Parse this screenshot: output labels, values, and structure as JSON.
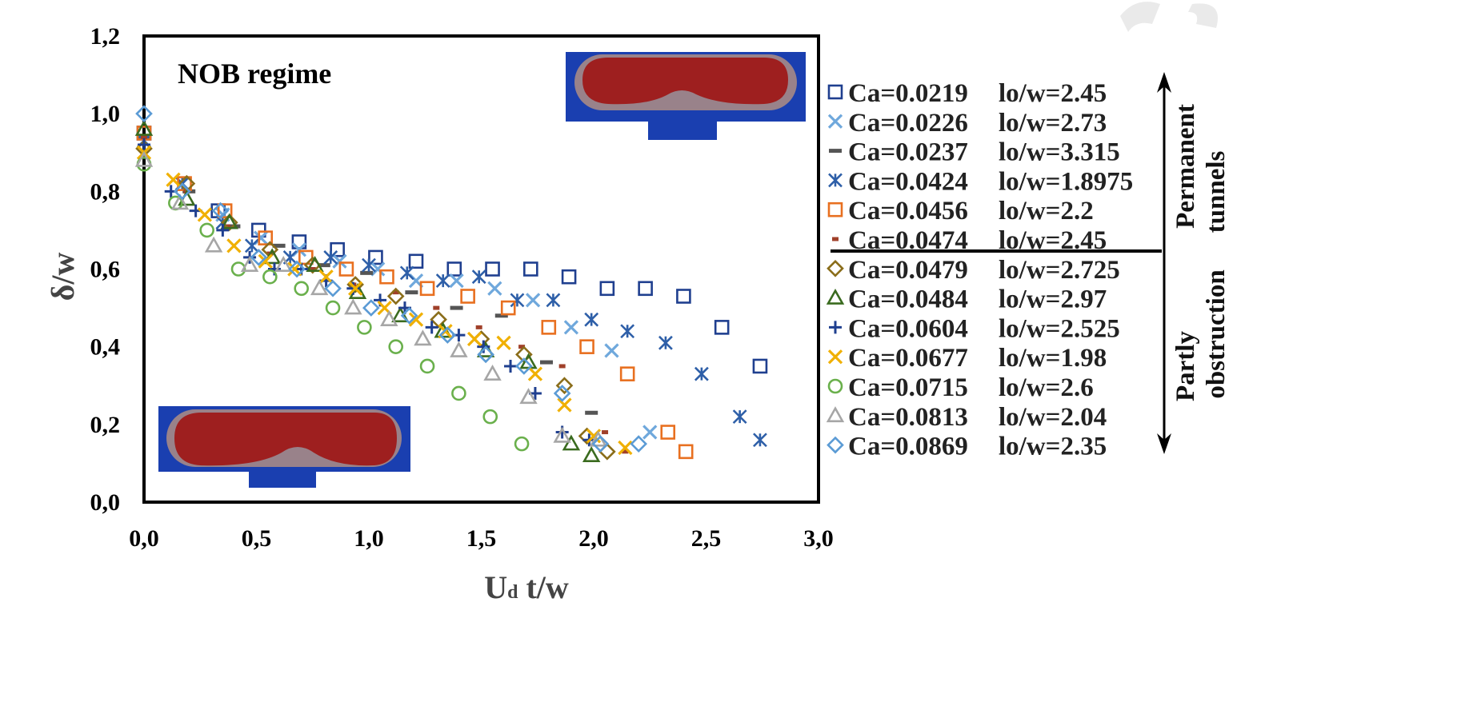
{
  "chart_data": {
    "type": "scatter",
    "title": "",
    "xlabel_main": "U",
    "xlabel_sub": "d",
    "xlabel_rest": " t/w",
    "ylabel": "δ/w",
    "xlim": [
      0,
      3
    ],
    "ylim": [
      0,
      1.2
    ],
    "xticks": [
      "0,0",
      "0,5",
      "1,0",
      "1,5",
      "2,0",
      "2,5",
      "3,0"
    ],
    "xtick_values": [
      0,
      0.5,
      1.0,
      1.5,
      2.0,
      2.5,
      3.0
    ],
    "yticks": [
      "0,0",
      "0,2",
      "0,4",
      "0,6",
      "0,8",
      "1,0",
      "1,2"
    ],
    "ytick_values": [
      0,
      0.2,
      0.4,
      0.6,
      0.8,
      1.0,
      1.2
    ],
    "grid": false,
    "legend_position": "right",
    "annotation": "NOB regime",
    "side_labels": {
      "upper": [
        "Permanent",
        "tunnels"
      ],
      "lower": [
        "Partly",
        "obstruction"
      ]
    },
    "colors": {
      "frame": "#000000",
      "channel_blue": "#1a3fb0",
      "bubble_red": "#9e1f1f"
    },
    "series": [
      {
        "name": "Ca=0.0219",
        "lo": "lo/w=2.45",
        "marker": "square-open",
        "color": "#1f3f8f",
        "x": [
          0.0,
          0.33,
          0.51,
          0.69,
          0.86,
          1.03,
          1.21,
          1.38,
          1.55,
          1.72,
          1.89,
          2.06,
          2.23,
          2.4,
          2.57,
          2.74
        ],
        "y": [
          0.95,
          0.75,
          0.7,
          0.67,
          0.65,
          0.63,
          0.62,
          0.6,
          0.6,
          0.6,
          0.58,
          0.55,
          0.55,
          0.53,
          0.45,
          0.35
        ]
      },
      {
        "name": "Ca=0.0226",
        "lo": "lo/w=2.73",
        "marker": "x",
        "color": "#6fa8dc",
        "x": [
          0.0,
          0.17,
          0.35,
          0.52,
          0.69,
          0.87,
          1.04,
          1.21,
          1.39,
          1.56,
          1.73,
          1.9,
          2.08,
          2.25
        ],
        "y": [
          0.93,
          0.82,
          0.74,
          0.68,
          0.65,
          0.62,
          0.6,
          0.57,
          0.57,
          0.55,
          0.52,
          0.45,
          0.39,
          0.18
        ]
      },
      {
        "name": "Ca=0.0237",
        "lo": "lo/w=3.315",
        "marker": "dash",
        "color": "#555555",
        "x": [
          0.0,
          0.2,
          0.4,
          0.6,
          0.8,
          0.99,
          1.19,
          1.39,
          1.59,
          1.79,
          1.99
        ],
        "y": [
          0.94,
          0.8,
          0.71,
          0.66,
          0.61,
          0.59,
          0.54,
          0.5,
          0.48,
          0.36,
          0.23
        ]
      },
      {
        "name": "Ca=0.0424",
        "lo": "lo/w=1.8975",
        "marker": "asterisk",
        "color": "#2e5fa8",
        "x": [
          0.0,
          0.17,
          0.35,
          0.48,
          0.65,
          0.83,
          1.0,
          1.17,
          1.33,
          1.49,
          1.66,
          1.82,
          1.99,
          2.15,
          2.32,
          2.48,
          2.65,
          2.74
        ],
        "y": [
          0.93,
          0.82,
          0.72,
          0.66,
          0.63,
          0.63,
          0.61,
          0.59,
          0.57,
          0.58,
          0.52,
          0.52,
          0.47,
          0.44,
          0.41,
          0.33,
          0.22,
          0.16
        ]
      },
      {
        "name": "Ca=0.0456",
        "lo": "lo/w=2.2",
        "marker": "square-open",
        "color": "#e87020",
        "x": [
          0.0,
          0.18,
          0.36,
          0.54,
          0.72,
          0.9,
          1.08,
          1.26,
          1.44,
          1.62,
          1.8,
          1.97,
          2.15,
          2.33,
          2.41
        ],
        "y": [
          0.95,
          0.82,
          0.75,
          0.68,
          0.63,
          0.6,
          0.58,
          0.55,
          0.53,
          0.5,
          0.45,
          0.4,
          0.33,
          0.18,
          0.13
        ]
      },
      {
        "name": "Ca=0.0474",
        "lo": "lo/w=2.45",
        "marker": "dash-short",
        "color": "#a0402a",
        "x": [
          0.0,
          0.19,
          0.37,
          0.56,
          0.75,
          0.93,
          1.12,
          1.3,
          1.49,
          1.68,
          1.86,
          2.05,
          2.14
        ],
        "y": [
          0.94,
          0.8,
          0.71,
          0.64,
          0.6,
          0.56,
          0.54,
          0.5,
          0.45,
          0.4,
          0.35,
          0.18,
          0.13
        ]
      },
      {
        "name": "Ca=0.0479",
        "lo": "lo/w=2.725",
        "marker": "diamond-open",
        "color": "#8a6d1a",
        "x": [
          0.0,
          0.19,
          0.38,
          0.56,
          0.75,
          0.94,
          1.12,
          1.31,
          1.5,
          1.69,
          1.87,
          1.97,
          2.06
        ],
        "y": [
          0.91,
          0.82,
          0.72,
          0.65,
          0.61,
          0.56,
          0.53,
          0.47,
          0.42,
          0.38,
          0.3,
          0.17,
          0.13
        ]
      },
      {
        "name": "Ca=0.0484",
        "lo": "lo/w=2.97",
        "marker": "triangle-open",
        "color": "#3a6b1f",
        "x": [
          0.0,
          0.19,
          0.38,
          0.57,
          0.76,
          0.95,
          1.14,
          1.33,
          1.52,
          1.71,
          1.9,
          1.99
        ],
        "y": [
          0.96,
          0.78,
          0.72,
          0.63,
          0.61,
          0.54,
          0.48,
          0.44,
          0.39,
          0.36,
          0.15,
          0.12
        ]
      },
      {
        "name": "Ca=0.0604",
        "lo": "lo/w=2.525",
        "marker": "plus",
        "color": "#1f3f8f",
        "x": [
          0.0,
          0.12,
          0.23,
          0.35,
          0.47,
          0.58,
          0.7,
          0.81,
          0.93,
          1.05,
          1.16,
          1.28,
          1.4,
          1.51,
          1.63,
          1.74,
          1.86,
          1.98
        ],
        "y": [
          0.92,
          0.8,
          0.75,
          0.7,
          0.63,
          0.6,
          0.6,
          0.57,
          0.55,
          0.52,
          0.5,
          0.45,
          0.43,
          0.4,
          0.35,
          0.28,
          0.18,
          0.16
        ]
      },
      {
        "name": "Ca=0.0677",
        "lo": "lo/w=1.98",
        "marker": "x",
        "color": "#f0b000",
        "x": [
          0.0,
          0.13,
          0.27,
          0.4,
          0.54,
          0.67,
          0.81,
          0.94,
          1.07,
          1.21,
          1.34,
          1.47,
          1.6,
          1.74,
          1.87,
          2.0,
          2.14
        ],
        "y": [
          0.9,
          0.83,
          0.74,
          0.66,
          0.62,
          0.6,
          0.58,
          0.55,
          0.5,
          0.47,
          0.44,
          0.42,
          0.41,
          0.33,
          0.25,
          0.17,
          0.14
        ]
      },
      {
        "name": "Ca=0.0715",
        "lo": "lo/w=2.6",
        "marker": "circle-open",
        "color": "#6ab04c",
        "x": [
          0.0,
          0.14,
          0.28,
          0.42,
          0.56,
          0.7,
          0.84,
          0.98,
          1.12,
          1.26,
          1.4,
          1.54,
          1.68
        ],
        "y": [
          0.87,
          0.77,
          0.7,
          0.6,
          0.58,
          0.55,
          0.5,
          0.45,
          0.4,
          0.35,
          0.28,
          0.22,
          0.15
        ]
      },
      {
        "name": "Ca=0.0813",
        "lo": "lo/w=2.04",
        "marker": "triangle-open",
        "color": "#a6a6a6",
        "x": [
          0.0,
          0.16,
          0.31,
          0.47,
          0.62,
          0.78,
          0.93,
          1.09,
          1.24,
          1.4,
          1.55,
          1.71,
          1.86,
          2.02
        ],
        "y": [
          0.88,
          0.77,
          0.66,
          0.61,
          0.61,
          0.55,
          0.5,
          0.47,
          0.42,
          0.39,
          0.33,
          0.27,
          0.17,
          0.16
        ]
      },
      {
        "name": "Ca=0.0869",
        "lo": "lo/w=2.35",
        "marker": "diamond-open",
        "color": "#5b9bd5",
        "x": [
          0.0,
          0.17,
          0.34,
          0.51,
          0.68,
          0.84,
          1.01,
          1.18,
          1.35,
          1.52,
          1.69,
          1.86,
          2.03,
          2.2
        ],
        "y": [
          1.0,
          0.8,
          0.75,
          0.63,
          0.6,
          0.55,
          0.5,
          0.48,
          0.43,
          0.38,
          0.35,
          0.28,
          0.15,
          0.15
        ]
      }
    ]
  }
}
